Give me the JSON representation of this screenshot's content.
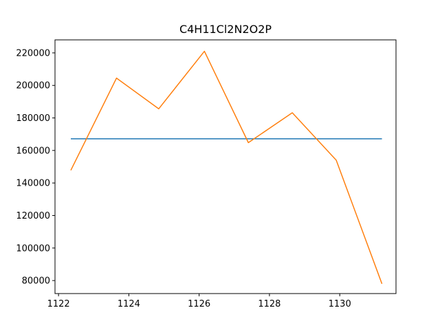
{
  "chart_data": {
    "type": "line",
    "title": "C4H11Cl2N2O2P",
    "xlabel": "",
    "ylabel": "",
    "xlim": [
      1121.9,
      1131.6
    ],
    "ylim": [
      72000,
      228000
    ],
    "x_ticks": [
      1122,
      1124,
      1126,
      1128,
      1130
    ],
    "y_ticks": [
      80000,
      100000,
      120000,
      140000,
      160000,
      180000,
      200000,
      220000
    ],
    "grid": false,
    "series": [
      {
        "color": "#1f77b4",
        "x": [
          1122.35,
          1131.2
        ],
        "y": [
          167200,
          167200
        ]
      },
      {
        "color": "#ff7f0e",
        "x": [
          1122.35,
          1123.65,
          1124.85,
          1126.15,
          1127.4,
          1128.65,
          1129.9,
          1131.2
        ],
        "y": [
          147800,
          204500,
          185600,
          221000,
          164800,
          183200,
          154000,
          78000
        ]
      }
    ]
  }
}
